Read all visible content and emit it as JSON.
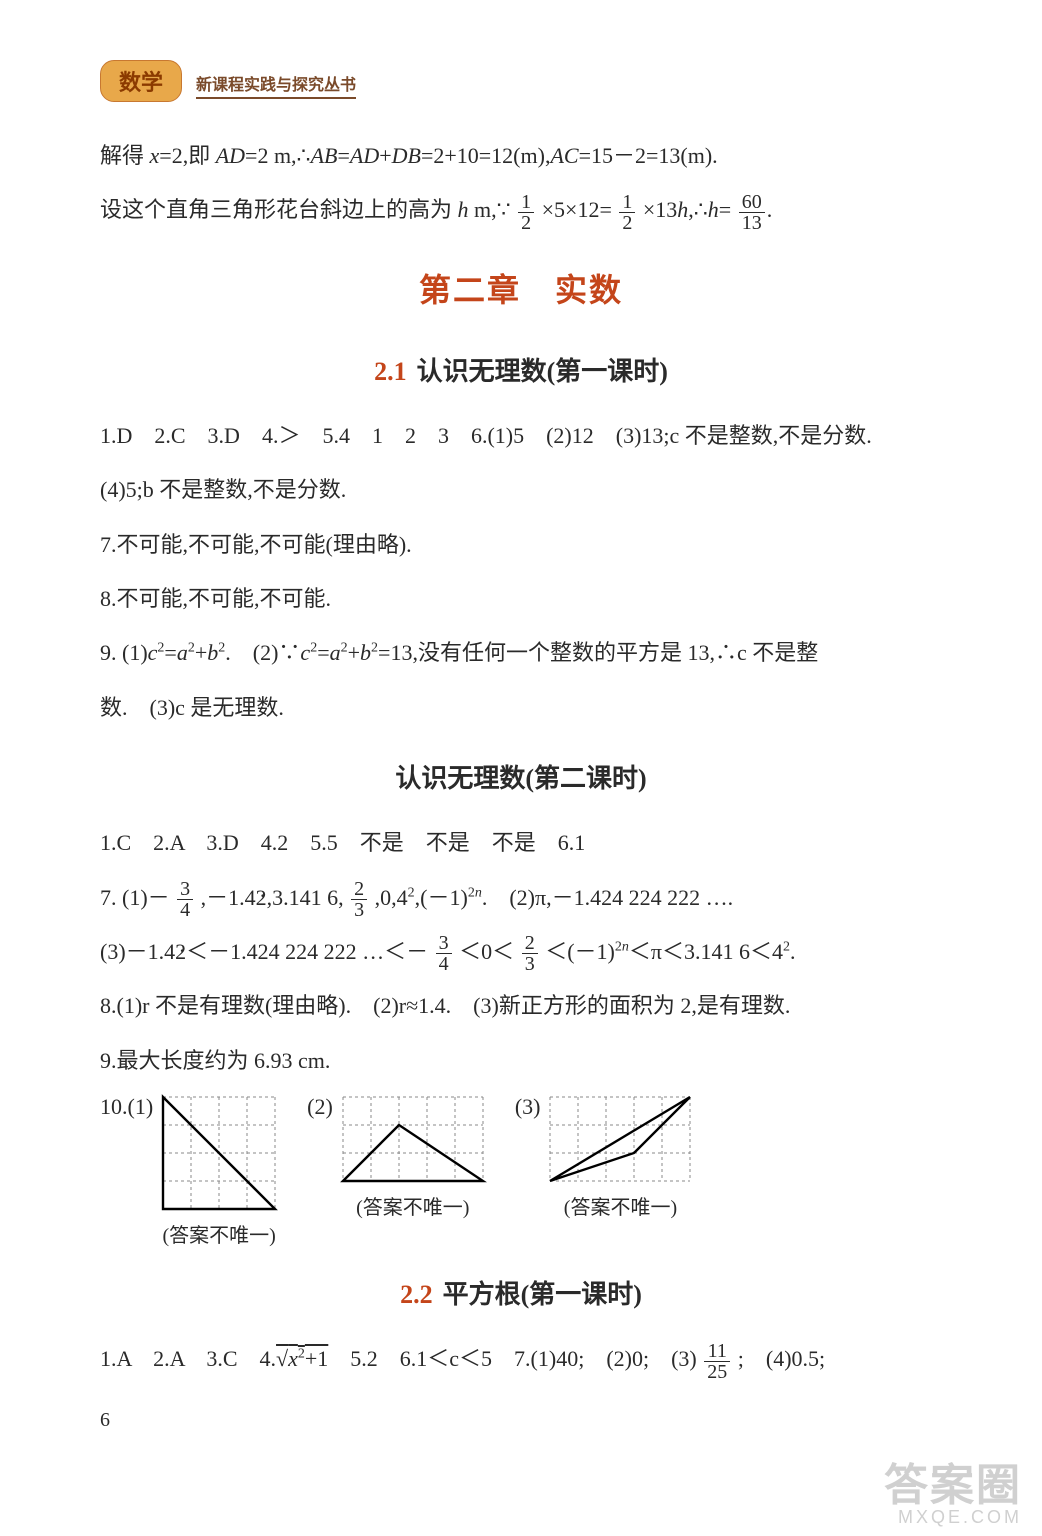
{
  "header": {
    "subject": "数学",
    "series": "新课程实践与探究丛书"
  },
  "intro": {
    "line1_a": "解得 ",
    "line1_b": "=2,即 ",
    "line1_c": "=2 m,∴",
    "line1_d": "=",
    "line1_e": "+",
    "line1_f": "=2+10=12(m),",
    "line1_g": "=15－2=13(m).",
    "line2_a": "设这个直角三角形花台斜边上的高为 ",
    "line2_b": " m,∵",
    "line2_c": "×5×12=",
    "line2_d": "×13",
    "line2_e": ",∴",
    "line2_f": "="
  },
  "chapter": "第二章　实数",
  "s21": {
    "title_num": "2.1",
    "title_text": "认识无理数(第一课时)",
    "p1": "1.D　2.C　3.D　4.＞　5.4　1　2　3　6.(1)5　(2)12　(3)13;c 不是整数,不是分数.",
    "p2": "(4)5;b 不是整数,不是分数.",
    "p3": "7.不可能,不可能,不可能(理由略).",
    "p4": "8.不可能,不可能,不可能.",
    "p5_a": "9. (1)",
    "p5_b": "=",
    "p5_c": "+",
    "p5_d": ".　(2)∵",
    "p5_e": "=",
    "p5_f": "+",
    "p5_g": "=13,没有任何一个整数的平方是 13,∴c 不是整",
    "p6": "数.　(3)c 是无理数."
  },
  "s21b": {
    "title": "认识无理数(第二课时)",
    "p1": "1.C　2.A　3.D　4.2　5.5　不是　不是　不是　6.1",
    "p2_a": "7. (1)－",
    "p2_b": ",－1.4",
    "p2_c": ",3.141 6,",
    "p2_d": ",0,4",
    "p2_e": ",(－1)",
    "p2_f": ".　(2)π,－1.424 224 222 ….",
    "p3_a": "(3)－1.4",
    "p3_b": "＜－1.424 224 222 …＜－",
    "p3_c": "＜0＜",
    "p3_d": "＜(－1)",
    "p3_e": "＜π＜3.141 6＜4",
    "p3_f": ".",
    "p4": "8.(1)r 不是有理数(理由略).　(2)r≈1.4.　(3)新正方形的面积为 2,是有理数.",
    "p5": "9.最大长度约为 6.93 cm.",
    "q10": "10.(1)",
    "q10_2": "(2)",
    "q10_3": "(3)",
    "caption": "(答案不唯一)"
  },
  "s22": {
    "title_num": "2.2",
    "title_text": "平方根(第一课时)",
    "p1_a": "1.A　2.A　3.C　4.",
    "p1_b": "　5.2　6.1＜c＜5　7.(1)40;　(2)0;　(3)",
    "p1_c": ";　(4)0.5;"
  },
  "page_number": "6",
  "watermark": {
    "big": "答案圈",
    "small": "MXQE.COM"
  },
  "fracs": {
    "half_n": "1",
    "half_d": "2",
    "sixty_n": "60",
    "sixty_d": "13",
    "three4_n": "3",
    "three4_d": "4",
    "two3_n": "2",
    "two3_d": "3",
    "eleven25_n": "11",
    "eleven25_d": "25"
  },
  "grids": {
    "size": 28,
    "stroke": "#888888",
    "dash": "3,3",
    "shape_stroke": "#000000",
    "shape_width": 2.4
  }
}
